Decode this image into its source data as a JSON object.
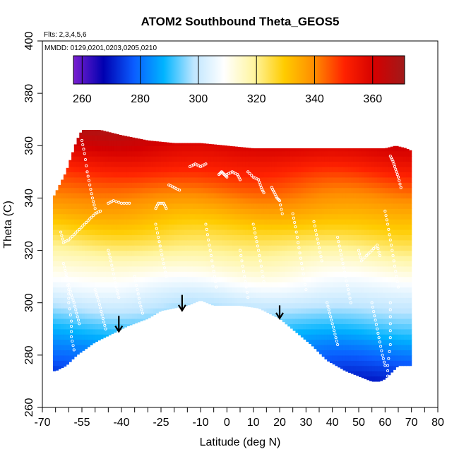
{
  "chart_data": {
    "type": "heatmap",
    "title": "ATOM2 Southbound Theta_GEOS5",
    "annotation_flights": "Flts: 2,3,4,5,6",
    "annotation_dates": "MMDD: 0129,0201,0203,0205,0210",
    "xlabel": "Latitude (deg N)",
    "ylabel": "Theta (C)",
    "xlim": [
      -70,
      80
    ],
    "ylim": [
      260,
      400
    ],
    "x_ticks": [
      -70,
      -55,
      -40,
      -25,
      -10,
      0,
      10,
      20,
      30,
      40,
      50,
      60,
      70,
      80
    ],
    "x_tick_labels": [
      "-70",
      "-55",
      "-40",
      "-25",
      "-10",
      "0",
      "10",
      "20",
      "30",
      "40",
      "50",
      "60",
      "70",
      "80"
    ],
    "x_minor_ticks": [
      -65,
      -60,
      -50,
      -45,
      -35,
      -30,
      -20,
      -15,
      -5,
      5,
      15,
      25,
      35,
      45,
      55,
      65,
      75
    ],
    "y_ticks": [
      260,
      280,
      300,
      320,
      340,
      360,
      380,
      400
    ],
    "y_tick_labels": [
      "260",
      "280",
      "300",
      "320",
      "340",
      "360",
      "380",
      "400"
    ],
    "colorbar": {
      "range": [
        257,
        371
      ],
      "ticks": [
        260,
        280,
        300,
        320,
        340,
        360
      ],
      "tick_labels": [
        "260",
        "280",
        "300",
        "320",
        "340",
        "360"
      ],
      "colors": [
        "#7a1fd0",
        "#0000b0",
        "#0a5cff",
        "#00b4ff",
        "#bfe6ff",
        "#ffffff",
        "#fff5a0",
        "#ffcc00",
        "#ff8c00",
        "#ff2200",
        "#d40000",
        "#a01a1a"
      ]
    },
    "field_boundary": {
      "top": [
        [
          -66,
          340
        ],
        [
          -61,
          350
        ],
        [
          -57,
          362
        ],
        [
          -55,
          366
        ],
        [
          -48,
          366
        ],
        [
          -40,
          364
        ],
        [
          -30,
          362
        ],
        [
          -20,
          361
        ],
        [
          -10,
          361
        ],
        [
          0,
          360
        ],
        [
          10,
          359
        ],
        [
          20,
          359
        ],
        [
          30,
          359
        ],
        [
          40,
          359
        ],
        [
          50,
          359
        ],
        [
          60,
          359
        ],
        [
          64,
          360
        ],
        [
          68,
          359
        ],
        [
          70,
          358
        ]
      ],
      "bottom": [
        [
          70,
          276
        ],
        [
          65,
          276
        ],
        [
          60,
          271
        ],
        [
          58,
          270
        ],
        [
          55,
          270
        ],
        [
          45,
          274
        ],
        [
          38,
          278
        ],
        [
          32,
          284
        ],
        [
          20,
          294
        ],
        [
          12,
          298
        ],
        [
          5,
          299
        ],
        [
          0,
          299
        ],
        [
          -5,
          299
        ],
        [
          -10,
          301
        ],
        [
          -15,
          299
        ],
        [
          -20,
          298
        ],
        [
          -25,
          297
        ],
        [
          -30,
          294
        ],
        [
          -38,
          291
        ],
        [
          -44,
          288
        ],
        [
          -50,
          285
        ],
        [
          -57,
          280
        ],
        [
          -61,
          276
        ],
        [
          -65,
          274
        ],
        [
          -66,
          274
        ]
      ]
    },
    "arrows": [
      {
        "x": -41,
        "y_top": 295,
        "y_bottom": 289
      },
      {
        "x": -17,
        "y_top": 303,
        "y_bottom": 297
      },
      {
        "x": 20,
        "y_top": 299,
        "y_bottom": 294
      }
    ],
    "flight_track_segments": [
      [
        [
          -55,
          362
        ],
        [
          -54,
          357
        ],
        [
          -53,
          350
        ],
        [
          -52,
          345
        ],
        [
          -51,
          340
        ],
        [
          -50,
          336
        ]
      ],
      [
        [
          -45,
          338
        ],
        [
          -43,
          339
        ],
        [
          -40,
          338
        ],
        [
          -37,
          338
        ]
      ],
      [
        [
          -27,
          336
        ],
        [
          -26,
          338
        ],
        [
          -24,
          338
        ],
        [
          -23,
          336
        ]
      ],
      [
        [
          -22,
          345
        ],
        [
          -20,
          344
        ],
        [
          -18,
          343
        ]
      ],
      [
        [
          -14,
          352
        ],
        [
          -12,
          353
        ],
        [
          -10,
          352
        ],
        [
          -8,
          353
        ]
      ],
      [
        [
          -3,
          349
        ],
        [
          -2,
          350
        ],
        [
          -1,
          349
        ],
        [
          0,
          348
        ]
      ],
      [
        [
          0,
          349
        ],
        [
          2,
          350
        ],
        [
          4,
          349
        ],
        [
          5,
          347
        ]
      ],
      [
        [
          8,
          350
        ],
        [
          10,
          348
        ],
        [
          12,
          347
        ],
        [
          13,
          344
        ],
        [
          14,
          342
        ]
      ],
      [
        [
          17,
          344
        ],
        [
          18,
          342
        ],
        [
          19,
          340
        ],
        [
          20,
          339
        ],
        [
          21,
          334
        ]
      ],
      [
        [
          -63,
          327
        ],
        [
          -62,
          323
        ],
        [
          -60,
          324
        ],
        [
          -58,
          326
        ],
        [
          -56,
          328
        ],
        [
          -54,
          330
        ],
        [
          -52,
          332
        ],
        [
          -50,
          334
        ],
        [
          -48,
          335
        ]
      ],
      [
        [
          -62,
          315
        ],
        [
          -61,
          311
        ],
        [
          -60,
          307
        ],
        [
          -59,
          303
        ],
        [
          -58,
          300
        ],
        [
          -57,
          296
        ],
        [
          -56,
          292
        ]
      ],
      [
        [
          -45,
          320
        ],
        [
          -44,
          316
        ],
        [
          -43,
          311
        ],
        [
          -42,
          306
        ],
        [
          -41,
          302
        ]
      ],
      [
        [
          -27,
          330
        ],
        [
          -26,
          325
        ],
        [
          -25,
          320
        ],
        [
          -24,
          315
        ],
        [
          -23,
          310
        ]
      ],
      [
        [
          -8,
          330
        ],
        [
          -7,
          324
        ],
        [
          -6,
          318
        ],
        [
          -5,
          312
        ],
        [
          -4,
          306
        ]
      ],
      [
        [
          10,
          330
        ],
        [
          11,
          325
        ],
        [
          12,
          320
        ],
        [
          13,
          314
        ],
        [
          14,
          308
        ]
      ],
      [
        [
          25,
          334
        ],
        [
          26,
          329
        ],
        [
          27,
          323
        ],
        [
          28,
          317
        ],
        [
          29,
          311
        ],
        [
          30,
          305
        ]
      ],
      [
        [
          33,
          331
        ],
        [
          34,
          326
        ],
        [
          35,
          321
        ],
        [
          36,
          316
        ]
      ],
      [
        [
          42,
          325
        ],
        [
          43,
          320
        ],
        [
          44,
          315
        ],
        [
          45,
          310
        ],
        [
          46,
          305
        ],
        [
          47,
          300
        ]
      ],
      [
        [
          50,
          320
        ],
        [
          51,
          316
        ],
        [
          53,
          318
        ],
        [
          55,
          320
        ],
        [
          57,
          322
        ],
        [
          58,
          318
        ]
      ],
      [
        [
          60,
          335
        ],
        [
          61,
          330
        ],
        [
          62,
          324
        ],
        [
          63,
          318
        ],
        [
          64,
          312
        ],
        [
          65,
          306
        ]
      ],
      [
        [
          62,
          356
        ],
        [
          63,
          354
        ],
        [
          64,
          351
        ],
        [
          65,
          348
        ],
        [
          66,
          344
        ]
      ],
      [
        [
          62,
          300
        ],
        [
          62,
          292
        ],
        [
          62,
          284
        ],
        [
          61,
          276
        ],
        [
          61,
          270
        ]
      ],
      [
        [
          -61,
          310
        ],
        [
          -60,
          305
        ],
        [
          -60,
          300
        ],
        [
          -59,
          293
        ],
        [
          -59,
          287
        ],
        [
          -58,
          282
        ]
      ],
      [
        [
          -35,
          310
        ],
        [
          -34,
          305
        ],
        [
          -33,
          300
        ],
        [
          -32,
          296
        ]
      ],
      [
        [
          5,
          320
        ],
        [
          6,
          314
        ],
        [
          7,
          308
        ],
        [
          8,
          302
        ]
      ],
      [
        [
          -50,
          305
        ],
        [
          -49,
          302
        ],
        [
          -48,
          298
        ],
        [
          -47,
          294
        ],
        [
          -46,
          290
        ]
      ],
      [
        [
          38,
          300
        ],
        [
          39,
          296
        ],
        [
          40,
          292
        ],
        [
          41,
          288
        ],
        [
          42,
          284
        ]
      ],
      [
        [
          55,
          300
        ],
        [
          56,
          295
        ],
        [
          57,
          290
        ],
        [
          58,
          285
        ],
        [
          59,
          280
        ],
        [
          60,
          276
        ]
      ]
    ]
  }
}
